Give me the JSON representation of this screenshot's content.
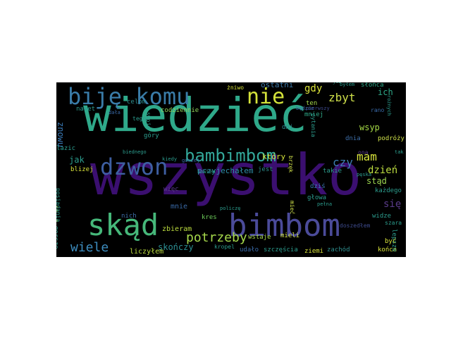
{
  "wordcloud": {
    "background": "#000000",
    "words": [
      {
        "text": "wszystko",
        "color": "#3b0f70"
      },
      {
        "text": "wiedzieć",
        "color": "#2fa98a"
      },
      {
        "text": "bimbom",
        "color": "#4b4b9a"
      },
      {
        "text": "skąd",
        "color": "#46b87a"
      },
      {
        "text": "biję komu",
        "color": "#3a7ca8"
      },
      {
        "text": "dzwon",
        "color": "#3e5fa2"
      },
      {
        "text": "nie",
        "color": "#d4e23a"
      },
      {
        "text": "bambimbom",
        "color": "#33a89a"
      },
      {
        "text": "potrzeby",
        "color": "#a6d94b"
      },
      {
        "text": "wiele",
        "color": "#3d8dbf"
      },
      {
        "text": "mam",
        "color": "#d7e33c"
      },
      {
        "text": "zbyt",
        "color": "#cfe04a"
      },
      {
        "text": "czy",
        "color": "#3c7db0"
      },
      {
        "text": "dzień",
        "color": "#bcdc3f"
      },
      {
        "text": "się",
        "color": "#5a3b8a"
      },
      {
        "text": "gdy",
        "color": "#dde53a"
      },
      {
        "text": "ich",
        "color": "#2fa888"
      },
      {
        "text": "znowu",
        "color": "#3a7ab6"
      },
      {
        "text": "myślałem",
        "color": "#d8e33a"
      },
      {
        "text": "jak",
        "color": "#2c9d8e"
      },
      {
        "text": "wsyp",
        "color": "#a4d845"
      },
      {
        "text": "stąd",
        "color": "#9ed750"
      },
      {
        "text": "skończy",
        "color": "#2c8f93"
      },
      {
        "text": "liczyłem",
        "color": "#bcdc3f"
      },
      {
        "text": "mnie",
        "color": "#3a6aa8"
      },
      {
        "text": "zbieram",
        "color": "#bcdc3f"
      },
      {
        "text": "przyjechałem",
        "color": "#2f8ea8"
      },
      {
        "text": "ostatni",
        "color": "#3f7aa8"
      },
      {
        "text": "który",
        "color": "#d4e23a"
      },
      {
        "text": "codziennie",
        "color": "#8fd25a"
      },
      {
        "text": "ziemi",
        "color": "#d8e33a"
      },
      {
        "text": "zachód",
        "color": "#2f8f8f"
      },
      {
        "text": "końca",
        "color": "#d8e33a"
      },
      {
        "text": "lepsze",
        "color": "#2c9d8e"
      },
      {
        "text": "udało",
        "color": "#3a6aa8"
      },
      {
        "text": "szczęścia",
        "color": "#2c9d8e"
      },
      {
        "text": "mieli",
        "color": "#cfe04a"
      },
      {
        "text": "wstaje",
        "color": "#a6d94b"
      },
      {
        "text": "nich",
        "color": "#3e6ea8"
      },
      {
        "text": "więc",
        "color": "#5a3b8a"
      },
      {
        "text": "kres",
        "color": "#6dcc5a"
      },
      {
        "text": "jest",
        "color": "#2f8f8f"
      },
      {
        "text": "takie",
        "color": "#2c9d8e"
      },
      {
        "text": "dziś",
        "color": "#3a7ab6"
      },
      {
        "text": "mniej",
        "color": "#2fa888"
      },
      {
        "text": "dnia",
        "color": "#3e6ea8"
      },
      {
        "text": "dni",
        "color": "#2c8f93"
      },
      {
        "text": "góry",
        "color": "#2c9d8e"
      },
      {
        "text": "celom",
        "color": "#2f8f8f"
      },
      {
        "text": "nawet",
        "color": "#2c9d8e"
      },
      {
        "text": "żniwo",
        "color": "#d8e33a"
      },
      {
        "text": "słońca",
        "color": "#2fa888"
      },
      {
        "text": "ten",
        "color": "#a6d94b"
      },
      {
        "text": "podróży",
        "color": "#cfe04a"
      },
      {
        "text": "każdego",
        "color": "#2c9d8e"
      },
      {
        "text": "widze",
        "color": "#2c9d8e"
      },
      {
        "text": "szara",
        "color": "#2c9d8e"
      },
      {
        "text": "być",
        "color": "#d8e33a"
      },
      {
        "text": "głowa",
        "color": "#2c9d8e"
      },
      {
        "text": "blizej",
        "color": "#d8e33a"
      },
      {
        "text": "lazic",
        "color": "#2c9d8e"
      },
      {
        "text": "gorsze",
        "color": "#2c9d8e"
      },
      {
        "text": "pytania",
        "color": "#2c9d8e"
      },
      {
        "text": "mieć",
        "color": "#cfe04a"
      },
      {
        "text": "rano",
        "color": "#3a6aa8"
      },
      {
        "text": "tego",
        "color": "#2c9d8e"
      },
      {
        "text": "swoje",
        "color": "#2c9d8e"
      },
      {
        "text": "kropel",
        "color": "#2c9d8e"
      },
      {
        "text": "będzie",
        "color": "#3a6aa8"
      },
      {
        "text": "pierwszy",
        "color": "#3e4b8e"
      },
      {
        "text": "zagubki",
        "color": "#2c9d8e"
      },
      {
        "text": "rożnych",
        "color": "#2c9d8e"
      },
      {
        "text": "byłem",
        "color": "#2c9d8e"
      },
      {
        "text": "już",
        "color": "#2c9d8e"
      },
      {
        "text": "tak",
        "color": "#2c9d8e"
      },
      {
        "text": "brzęk",
        "color": "#cfe04a"
      },
      {
        "text": "pełna",
        "color": "#2c9d8e"
      },
      {
        "text": "policzę",
        "color": "#2c9d8e"
      },
      {
        "text": "pęska",
        "color": "#2c9d8e"
      },
      {
        "text": "ona",
        "color": "#5a3b8a"
      },
      {
        "text": "posiadania",
        "color": "#2c9d8e"
      },
      {
        "text": "doszedłem",
        "color": "#3e4b8e"
      },
      {
        "text": "dała",
        "color": "#3a6aa8"
      },
      {
        "text": "bowiem",
        "color": "#2c9d8e"
      },
      {
        "text": "gorzej",
        "color": "#3a6aa8"
      },
      {
        "text": "kiedy",
        "color": "#2c9d8e"
      },
      {
        "text": "biednego",
        "color": "#2c9d8e"
      }
    ]
  }
}
